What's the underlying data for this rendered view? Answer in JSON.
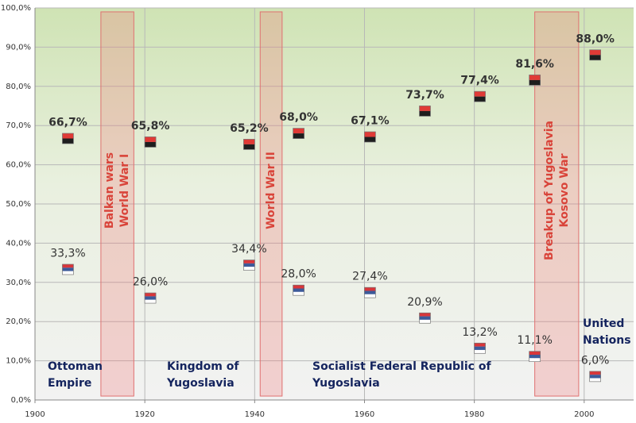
{
  "chart_data": {
    "type": "scatter",
    "x": [
      1906,
      1921,
      1939,
      1948,
      1961,
      1971,
      1981,
      1991,
      2002
    ],
    "series": [
      {
        "colors": [
          "#e03a36",
          "#1e1e1e"
        ],
        "values": [
          66.7,
          65.8,
          65.2,
          68.0,
          67.1,
          73.7,
          77.4,
          81.6,
          88.0
        ],
        "value_labels": [
          "66,7%",
          "65,8%",
          "65,2%",
          "68,0%",
          "67,1%",
          "73,7%",
          "77,4%",
          "81,6%",
          "88,0%"
        ]
      },
      {
        "colors": [
          "#d8363a",
          "#3c5a9a",
          "#ffffff"
        ],
        "values": [
          33.3,
          26.0,
          34.4,
          28.0,
          27.4,
          20.9,
          13.2,
          11.1,
          6.0
        ],
        "value_labels": [
          "33,3%",
          "26,0%",
          "34,4%",
          "28,0%",
          "27,4%",
          "20,9%",
          "13,2%",
          "11,1%",
          "6,0%"
        ]
      }
    ],
    "xlim": [
      1900,
      2009
    ],
    "xticks": [
      1900,
      1920,
      1940,
      1960,
      1980,
      2000
    ],
    "ylim": [
      0,
      100
    ],
    "yticks": [
      {
        "value": 0,
        "label": "0,0%"
      },
      {
        "value": 10,
        "label": "10,0%"
      },
      {
        "value": 20,
        "label": "20,0%"
      },
      {
        "value": 30,
        "label": "30,0%"
      },
      {
        "value": 40,
        "label": "40,0%"
      },
      {
        "value": 50,
        "label": "50,0%"
      },
      {
        "value": 60,
        "label": "60,0%"
      },
      {
        "value": 70,
        "label": "70,0%"
      },
      {
        "value": 80,
        "label": "80,0%"
      },
      {
        "value": 90,
        "label": "90,0%"
      },
      {
        "value": 100,
        "label": "100,0%"
      }
    ],
    "grid": true,
    "periods": [
      {
        "start": 1912,
        "end": 1918,
        "lines": [
          "Balkan wars",
          "World War I"
        ]
      },
      {
        "start": 1941,
        "end": 1945,
        "lines": [
          "World War II"
        ]
      },
      {
        "start": 1991,
        "end": 1999,
        "lines": [
          "Breakup of Yugoslavia",
          "Kosovo War"
        ]
      }
    ],
    "eras": [
      {
        "lines": [
          "Ottoman",
          "Empire"
        ]
      },
      {
        "lines": [
          "Kingdom of",
          "Yugoslavia"
        ]
      },
      {
        "lines": [
          "Socialist Federal Republic of",
          "Yugoslavia"
        ]
      },
      {
        "lines": [
          "United",
          "Nations"
        ]
      }
    ]
  }
}
